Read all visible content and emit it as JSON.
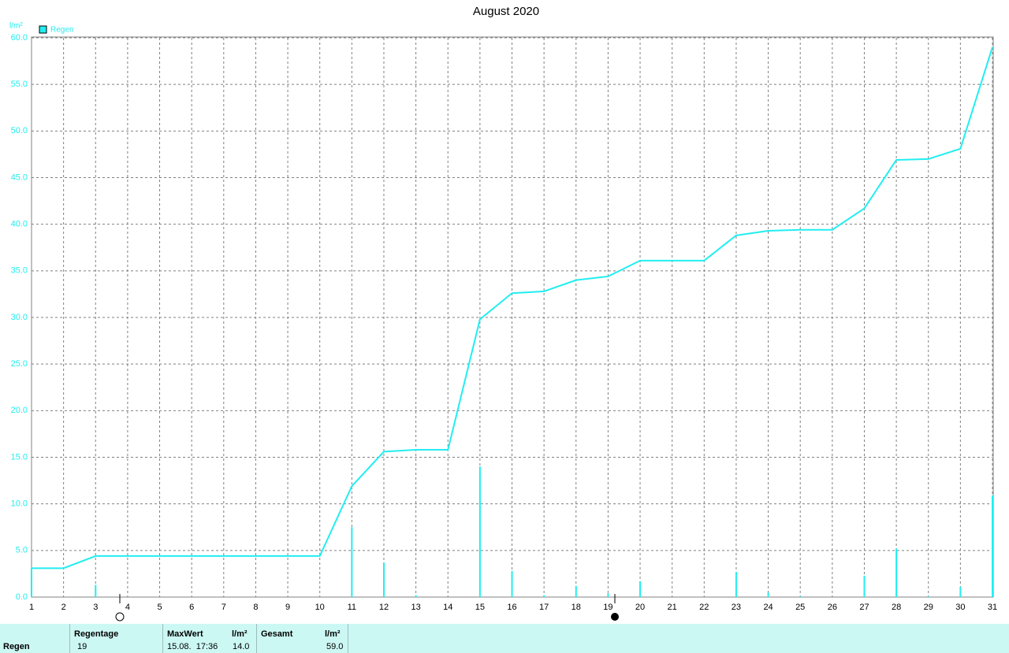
{
  "chart_data": {
    "type": "line",
    "title": "August 2020",
    "y_unit": "l/m²",
    "x": [
      1,
      2,
      3,
      4,
      5,
      6,
      7,
      8,
      9,
      10,
      11,
      12,
      13,
      14,
      15,
      16,
      17,
      18,
      19,
      20,
      21,
      22,
      23,
      24,
      25,
      26,
      27,
      28,
      29,
      30,
      31
    ],
    "xlim": [
      1,
      31
    ],
    "xticks": [
      1,
      2,
      3,
      4,
      5,
      6,
      7,
      8,
      9,
      10,
      11,
      12,
      13,
      14,
      15,
      16,
      17,
      18,
      19,
      20,
      21,
      22,
      23,
      24,
      25,
      26,
      27,
      28,
      29,
      30,
      31
    ],
    "ylim": [
      0,
      60
    ],
    "yticks": [
      {
        "value": 0,
        "label": "0.0"
      },
      {
        "value": 5,
        "label": "5.0"
      },
      {
        "value": 10,
        "label": "10.0"
      },
      {
        "value": 15,
        "label": "15.0"
      },
      {
        "value": 20,
        "label": "20.0"
      },
      {
        "value": 25,
        "label": "25.0"
      },
      {
        "value": 30,
        "label": "30.0"
      },
      {
        "value": 35,
        "label": "35.0"
      },
      {
        "value": 40,
        "label": "40.0"
      },
      {
        "value": 45,
        "label": "45.0"
      },
      {
        "value": 50,
        "label": "50.0"
      },
      {
        "value": 55,
        "label": "55.0"
      },
      {
        "value": 60,
        "label": "60.0"
      }
    ],
    "grid": true,
    "legend": "top-left",
    "series": [
      {
        "name": "Regen",
        "color": "#22eef0",
        "type": "line",
        "values": [
          3.1,
          3.1,
          4.4,
          4.4,
          4.4,
          4.4,
          4.4,
          4.4,
          4.4,
          4.4,
          11.9,
          15.6,
          15.8,
          15.8,
          29.8,
          32.6,
          32.8,
          34.0,
          34.4,
          36.1,
          36.1,
          36.1,
          38.8,
          39.3,
          39.4,
          39.4,
          41.7,
          46.9,
          47.0,
          48.1,
          59.0
        ]
      },
      {
        "color": "#22eef0",
        "type": "bar",
        "values": [
          3.1,
          0,
          1.3,
          0,
          0,
          0,
          0,
          0,
          0,
          0,
          7.5,
          3.7,
          0.2,
          0,
          14.0,
          2.8,
          0.2,
          1.2,
          0.4,
          1.7,
          0,
          0,
          2.7,
          0.5,
          0.1,
          0,
          2.3,
          5.2,
          0.1,
          1.1,
          10.9
        ]
      }
    ]
  },
  "table": {
    "row_label": "Regen",
    "headers": [
      "Regentage",
      "MaxWert",
      "l/m²",
      "Gesamt",
      "l/m²"
    ],
    "cells": [
      "19",
      "15.08.  17:36",
      "14.0",
      "59.0"
    ]
  }
}
